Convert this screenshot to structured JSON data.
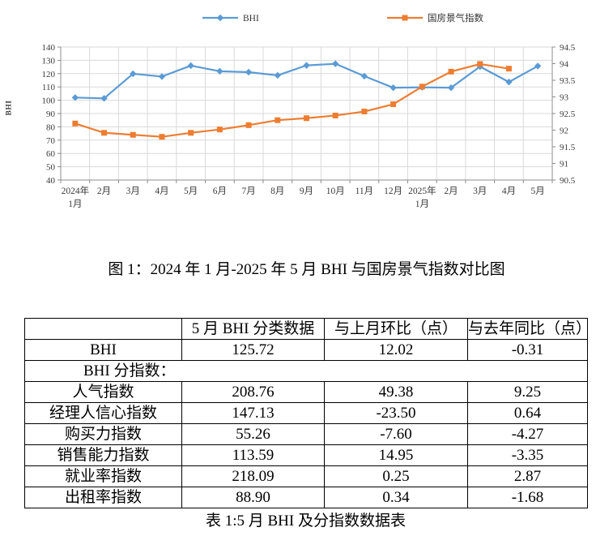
{
  "figure": {
    "title": "图 1：2024 年 1 月-2025 年 5 月 BHI 与国房景气指数对比图"
  },
  "chart_data": {
    "type": "line",
    "legend_position": "top",
    "grid": true,
    "categories": [
      "2024年\n1月",
      "2月",
      "3月",
      "4月",
      "5月",
      "6月",
      "7月",
      "8月",
      "9月",
      "10月",
      "11月",
      "12月",
      "2025年\n1月",
      "2月",
      "3月",
      "4月",
      "5月"
    ],
    "left_axis": {
      "title": "BHI",
      "min": 40,
      "max": 140,
      "step": 10
    },
    "right_axis": {
      "min": 90.5,
      "max": 94.5,
      "step": 0.5
    },
    "series": [
      {
        "id": "bhi",
        "name": "BHI",
        "axis": "left",
        "color": "#5B9BD5",
        "marker": "diamond",
        "values": [
          102.0,
          101.4,
          119.9,
          117.8,
          126.0,
          121.8,
          121.1,
          118.7,
          126.2,
          127.4,
          118.1,
          109.4,
          109.7,
          109.4,
          125.3,
          113.7,
          125.72
        ]
      },
      {
        "id": "climate_index",
        "name": "国房景气指数",
        "axis": "right",
        "color": "#ED7D31",
        "marker": "square",
        "values": [
          92.2,
          91.92,
          91.86,
          91.8,
          91.92,
          92.02,
          92.15,
          92.3,
          92.36,
          92.44,
          92.56,
          92.78,
          93.31,
          93.76,
          93.99,
          93.85,
          null
        ]
      }
    ]
  },
  "table": {
    "headers": [
      "",
      "5 月 BHI 分类数据",
      "与上月环比（点）",
      "与去年同比（点）"
    ],
    "bhi_row": {
      "label": "BHI",
      "value": "125.72",
      "mom": "12.02",
      "yoy": "-0.31"
    },
    "section_label": "BHI 分指数：",
    "rows": [
      {
        "label": "人气指数",
        "value": "208.76",
        "mom": "49.38",
        "yoy": "9.25"
      },
      {
        "label": "经理人信心指数",
        "value": "147.13",
        "mom": "-23.50",
        "yoy": "0.64"
      },
      {
        "label": "购买力指数",
        "value": "55.26",
        "mom": "-7.60",
        "yoy": "-4.27"
      },
      {
        "label": "销售能力指数",
        "value": "113.59",
        "mom": "14.95",
        "yoy": "-3.35"
      },
      {
        "label": "就业率指数",
        "value": "218.09",
        "mom": "0.25",
        "yoy": "2.87"
      },
      {
        "label": "出租率指数",
        "value": "88.90",
        "mom": "0.34",
        "yoy": "-1.68"
      }
    ],
    "caption": "表 1:5 月 BHI 及分指数数据表"
  }
}
